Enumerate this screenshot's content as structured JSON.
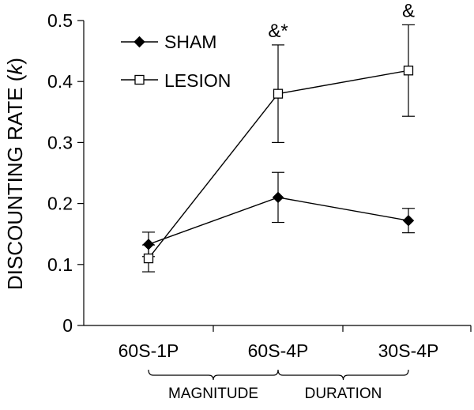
{
  "chart_data": {
    "type": "line",
    "categories": [
      "60S-1P",
      "60S-4P",
      "30S-4P"
    ],
    "ylabel": "DISCOUNTING RATE (k)",
    "ylabel_parts": [
      "DISCOUNTING RATE (",
      "k",
      ")"
    ],
    "ylim": [
      0,
      0.5
    ],
    "yticks": [
      0,
      0.1,
      0.2,
      0.3,
      0.4,
      0.5
    ],
    "ytick_labels": [
      "0",
      "0.1",
      "0.2",
      "0.3",
      "0.4",
      "0.5"
    ],
    "grid": false,
    "legend_position": "top-left",
    "series": [
      {
        "name": "SHAM",
        "marker": "filled-diamond",
        "values": [
          0.133,
          0.21,
          0.172
        ],
        "errors": [
          0.02,
          0.041,
          0.02
        ]
      },
      {
        "name": "LESION",
        "marker": "open-square",
        "values": [
          0.11,
          0.38,
          0.418
        ],
        "errors": [
          0.022,
          0.08,
          0.075
        ]
      }
    ],
    "annotations": [
      {
        "category": "60S-4P",
        "text": "&*"
      },
      {
        "category": "30S-4P",
        "text": "&"
      }
    ],
    "groups": [
      {
        "label": "MAGNITUDE",
        "from": "60S-1P",
        "to": "60S-4P"
      },
      {
        "label": "DURATION",
        "from": "60S-4P",
        "to": "30S-4P"
      }
    ]
  }
}
